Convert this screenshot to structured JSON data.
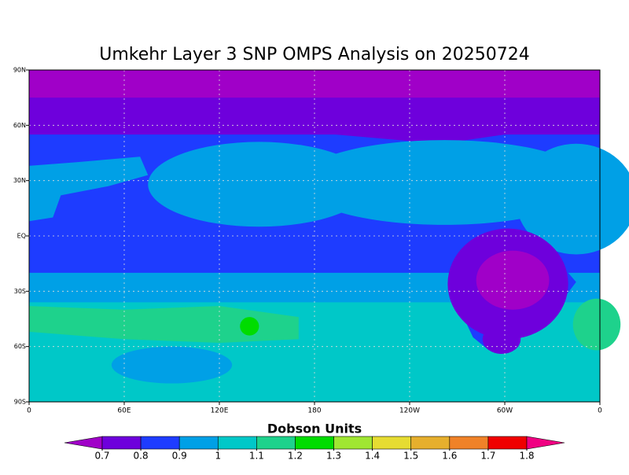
{
  "chart_data": {
    "type": "contour-map",
    "title": "Umkehr Layer 3 SNP OMPS Analysis on 20250724",
    "xlim": [
      0,
      360
    ],
    "xticks": [
      0,
      {
        "value": 60,
        "label": "60E"
      },
      {
        "value": 120,
        "label": "120E"
      },
      180,
      {
        "value": 240,
        "label": "120W"
      },
      {
        "value": 300,
        "label": "60W"
      },
      {
        "value": 360,
        "label": "0"
      }
    ],
    "ylim": [
      -90,
      90
    ],
    "yticks": [
      {
        "value": -90,
        "label": "90S"
      },
      {
        "value": -60,
        "label": "60S"
      },
      {
        "value": -30,
        "label": "30S"
      },
      {
        "value": 0,
        "label": "EQ"
      },
      {
        "value": 30,
        "label": "30N"
      },
      {
        "value": 60,
        "label": "60N"
      },
      {
        "value": 90,
        "label": "90N"
      }
    ],
    "grid": true,
    "colorbar": {
      "label": "Dobson Units",
      "levels": [
        0.7,
        0.8,
        0.9,
        1,
        1.1,
        1.2,
        1.3,
        1.4,
        1.5,
        1.6,
        1.7,
        1.8
      ],
      "colors": [
        "#a000c8",
        "#6e00dc",
        "#1e3cff",
        "#00a0e6",
        "#00c8c8",
        "#1ed28c",
        "#00dc00",
        "#a0e632",
        "#e6dc32",
        "#e6af2d",
        "#f08228",
        "#f00000",
        "#f00082"
      ]
    }
  }
}
